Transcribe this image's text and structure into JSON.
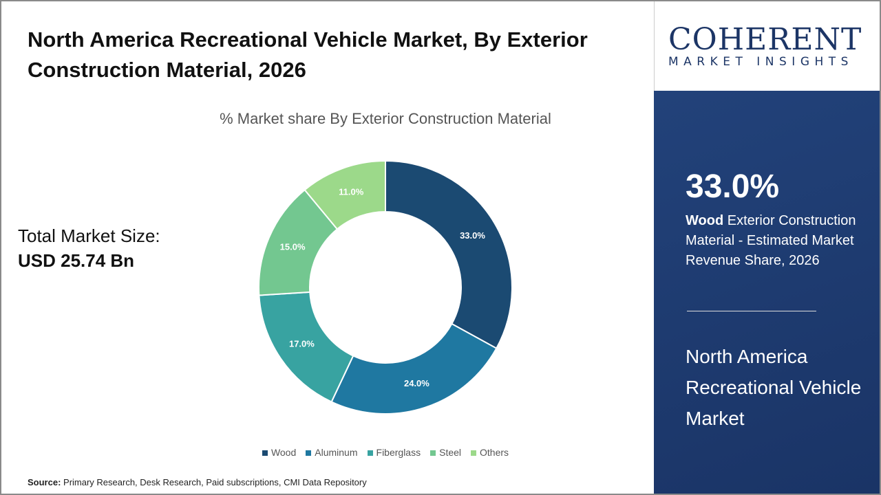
{
  "title": "North America Recreational Vehicle Market, By Exterior Construction Material, 2026",
  "market_size": {
    "label": "Total Market Size:",
    "value": "USD 25.74 Bn"
  },
  "source": {
    "label": "Source:",
    "text": "Primary Research, Desk Research, Paid subscriptions, CMI Data Repository"
  },
  "logo": {
    "name": "COHERENT",
    "tagline": "MARKET INSIGHTS"
  },
  "panel": {
    "highlight_value": "33.0%",
    "highlight_bold": "Wood",
    "highlight_text": "Exterior Construction Material - Estimated Market Revenue Share, 2026",
    "market_name": "North America Recreational Vehicle Market"
  },
  "chart_data": {
    "type": "pie",
    "donut": true,
    "title": "% Market share By Exterior Construction Material",
    "categories": [
      "Wood",
      "Aluminum",
      "Fiberglass",
      "Steel",
      "Others"
    ],
    "values": [
      33.0,
      24.0,
      17.0,
      15.0,
      11.0
    ],
    "labels": [
      "33.0%",
      "24.0%",
      "17.0%",
      "15.0%",
      "11.0%"
    ],
    "colors": [
      "#1b4a72",
      "#1f78a1",
      "#38a3a1",
      "#73c790",
      "#9cd98a"
    ],
    "legend_position": "bottom"
  }
}
